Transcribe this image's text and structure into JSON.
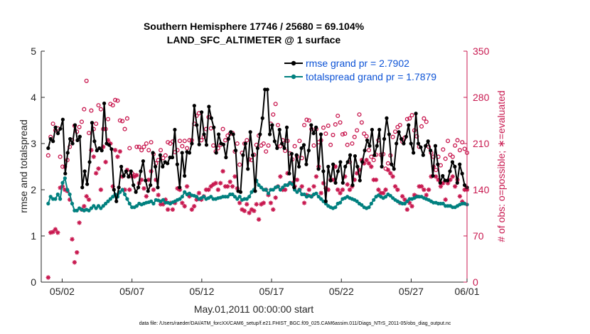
{
  "chart_data": {
    "type": "line",
    "title_line1": "Southern Hemisphere 17746 / 25680 = 69.104%",
    "title_line2": "LAND_SFC_ALTIMETER @ 1 surface",
    "xlabel": "May.01,2011 00:00:00 start",
    "ylabel_left": "rmse and totalspread",
    "ylabel_right": "# of obs: o=possible; ∗=evaluated",
    "footer": "data file: /Users/raeder/DAI/ATM_forcXX/CAM6_setup/f.e21.FHIST_BGC.f09_025.CAM6assim.011/Diags_NTrS_2011-05/obs_diag_output.nc",
    "xlim": [
      0.5,
      31.0
    ],
    "ylim_left": [
      0,
      5
    ],
    "ylim_right": [
      0,
      350
    ],
    "x_tick_values": [
      2,
      7,
      12,
      17,
      22,
      27,
      32
    ],
    "x_tick_labels": [
      "05/02",
      "05/07",
      "05/12",
      "05/17",
      "05/22",
      "05/27",
      "06/01"
    ],
    "y_left_ticks": [
      "0",
      "1",
      "2",
      "3",
      "4",
      "5"
    ],
    "y_right_ticks": [
      "0",
      "70",
      "140",
      "210",
      "280",
      "350"
    ],
    "colors": {
      "rmse": "#000000",
      "spread": "#00807f",
      "obs": "#c8184f",
      "legend_text": "#0b52d6"
    },
    "series": [
      {
        "name": "rmse grand pr = 2.7902",
        "marker": "dot",
        "values": [
          2.9,
          3.1,
          3.05,
          3.35,
          3.22,
          3.32,
          3.52,
          2.35,
          2.8,
          3.1,
          3.0,
          3.4,
          3.07,
          3.15,
          2.05,
          2.4,
          2.12,
          2.6,
          3.45,
          3.05,
          2.85,
          2.9,
          2.85,
          3.87,
          3.0,
          2.97,
          2.88,
          2.0,
          1.75,
          2.05,
          2.5,
          2.3,
          2.4,
          2.28,
          2.4,
          2.1,
          1.95,
          2.05,
          2.4,
          2.62,
          2.2,
          1.97,
          2.1,
          2.8,
          2.5,
          2.05,
          2.75,
          2.5,
          2.6,
          2.57,
          2.7,
          2.7,
          3.3,
          2.55,
          2.05,
          2.8,
          2.3,
          2.82,
          2.8,
          3.0,
          3.82,
          3.4,
          2.98,
          3.68,
          3.2,
          2.97,
          3.8,
          3.55,
          3.35,
          2.8,
          3.2,
          3.0,
          2.98,
          2.7,
          3.1,
          3.25,
          3.2,
          2.85,
          1.97,
          1.95,
          2.75,
          3.0,
          2.45,
          3.25,
          2.75,
          1.97,
          2.9,
          3.2,
          3.55,
          4.17,
          4.17,
          3.2,
          3.4,
          3.05,
          2.9,
          3.3,
          3.0,
          2.9,
          3.35,
          2.35,
          2.78,
          2.05,
          2.75,
          2.5,
          2.9,
          2.97,
          2.55,
          2.85,
          3.4,
          3.22,
          3.35,
          2.45,
          3.2,
          2.4,
          1.75,
          2.5,
          2.2,
          2.55,
          2.15,
          2.4,
          2.6,
          2.15,
          2.5,
          2.6,
          2.75,
          2.1,
          2.73,
          2.5,
          2.2,
          2.6,
          2.85,
          3.07,
          2.95,
          3.3,
          2.75,
          2.95,
          3.3,
          2.5,
          3.1,
          3.55,
          3.2,
          2.55,
          2.45,
          3.0,
          3.25,
          3.1,
          3.0,
          3.15,
          3.4,
          3.0,
          2.8,
          3.65,
          3.0,
          2.92,
          2.75,
          2.95,
          3.05,
          2.85,
          2.3,
          2.95,
          2.55,
          2.15,
          2.3,
          2.2,
          2.2,
          2.4,
          2.6,
          2.5,
          2.15,
          2.55,
          2.35,
          2.1,
          2.05
        ],
        "line": true
      },
      {
        "name": "totalspread grand pr = 1.7879",
        "marker": "dot",
        "values": [
          1.7,
          1.85,
          1.8,
          1.8,
          1.9,
          1.8,
          2.15,
          2.25,
          2.0,
          1.9,
          1.7,
          1.55,
          1.55,
          1.6,
          1.57,
          1.55,
          1.57,
          1.55,
          1.6,
          1.65,
          1.6,
          1.65,
          1.6,
          1.65,
          1.7,
          1.75,
          1.8,
          1.85,
          1.9,
          1.85,
          1.95,
          2.0,
          1.9,
          1.8,
          1.7,
          1.62,
          1.62,
          1.65,
          1.7,
          1.68,
          1.7,
          1.72,
          1.73,
          1.75,
          1.7,
          1.78,
          1.77,
          1.75,
          1.78,
          1.72,
          1.72,
          1.7,
          1.73,
          1.75,
          1.78,
          1.8,
          1.85,
          1.95,
          1.9,
          1.92,
          1.88,
          1.87,
          1.85,
          1.8,
          1.82,
          1.85,
          1.8,
          1.82,
          1.85,
          1.8,
          1.8,
          1.82,
          1.83,
          1.85,
          1.85,
          1.85,
          1.9,
          1.9,
          1.85,
          1.8,
          1.85,
          1.78,
          1.8,
          1.8,
          1.85,
          1.95,
          2.0,
          2.2,
          2.1,
          2.05,
          2.0,
          2.0,
          1.92,
          2.0,
          2.0,
          2.05,
          2.07,
          2.0,
          2.05,
          2.1,
          2.1,
          2.15,
          2.12,
          2.0,
          1.95,
          2.0,
          1.9,
          1.9,
          1.85,
          1.87,
          1.85,
          1.9,
          1.92,
          1.85,
          1.8,
          1.75,
          1.7,
          1.65,
          1.62,
          1.6,
          1.62,
          1.7,
          1.72,
          1.8,
          1.82,
          1.85,
          1.82,
          1.8,
          1.78,
          1.75,
          1.7,
          1.67,
          1.62,
          1.6,
          1.62,
          1.7,
          1.78,
          1.85,
          1.88,
          1.85,
          1.82,
          1.85,
          1.9,
          1.87,
          1.82,
          1.78,
          1.75,
          1.72,
          1.7,
          1.7,
          1.75,
          1.8,
          1.8,
          1.82,
          1.85,
          1.85,
          1.85,
          1.82,
          1.8,
          1.78,
          1.75,
          1.72,
          1.72,
          1.7,
          1.7,
          1.7,
          1.65,
          1.65,
          1.65,
          1.62,
          1.62,
          1.65,
          1.68,
          1.7,
          1.7,
          1.68
        ],
        "line": true
      },
      {
        "name": "obs possible",
        "marker": "circle",
        "values": [
          192,
          220,
          240,
          230,
          233,
          190,
          175,
          175,
          185,
          205,
          215,
          237,
          228,
          235,
          243,
          262,
          305,
          226,
          260,
          232,
          240,
          268,
          262,
          232,
          232,
          247,
          270,
          268,
          276,
          275,
          245,
          244,
          232,
          248,
          203,
          165,
          162,
          205,
          205,
          200,
          205,
          210,
          200,
          212,
          194,
          180,
          185,
          200,
          188,
          192,
          212,
          210,
          213,
          197,
          200,
          214,
          206,
          214,
          203,
          215,
          215,
          240,
          252,
          256,
          215,
          220,
          232,
          250,
          233,
          207,
          198,
          203,
          208,
          232,
          215,
          222,
          225,
          226,
          198,
          210,
          178,
          196,
          210,
          215,
          186,
          185,
          193,
          208,
          222,
          207,
          210,
          198,
          207,
          240,
          254,
          270,
          238,
          206,
          215,
          199,
          214,
          195,
          186,
          206,
          190,
          214,
          188,
          238,
          246,
          245,
          232,
          207,
          232,
          212,
          215,
          234,
          225,
          237,
          208,
          223,
          239,
          252,
          242,
          224,
          225,
          208,
          182,
          210,
          220,
          230,
          254,
          242,
          225,
          221,
          200,
          190,
          185,
          193,
          215,
          193,
          194,
          172,
          180,
          192,
          220,
          228,
          235,
          238,
          213,
          219,
          247,
          248,
          253,
          230,
          221,
          205,
          236,
          248,
          243,
          205,
          196,
          190,
          170,
          190,
          177,
          201,
          187,
          214,
          193,
          190,
          207,
          215,
          200,
          212,
          202,
          196
        ]
      },
      {
        "name": "obs evaluated",
        "marker": "star",
        "values": [
          7,
          75,
          76,
          80,
          75,
          143,
          145,
          140,
          138,
          125,
          65,
          30,
          45,
          90,
          110,
          115,
          130,
          125,
          200,
          190,
          165,
          172,
          140,
          205,
          182,
          215,
          210,
          145,
          200,
          190,
          198,
          160,
          140,
          170,
          140,
          160,
          160,
          162,
          150,
          155,
          142,
          130,
          155,
          168,
          140,
          155,
          132,
          118,
          118,
          125,
          110,
          120,
          110,
          120,
          142,
          140,
          120,
          115,
          145,
          130,
          110,
          115,
          125,
          135,
          125,
          130,
          140,
          140,
          145,
          148,
          150,
          140,
          150,
          168,
          145,
          145,
          152,
          145,
          160,
          142,
          120,
          110,
          108,
          118,
          105,
          110,
          108,
          118,
          95,
          118,
          120,
          140,
          132,
          120,
          110,
          128,
          145,
          160,
          140,
          140,
          165,
          150,
          150,
          145,
          155,
          140,
          145,
          120,
          132,
          140,
          130,
          145,
          160,
          175,
          135,
          150,
          142,
          140,
          155,
          155,
          175,
          140,
          135,
          140,
          160,
          148,
          140,
          145,
          155,
          165,
          170,
          185,
          180,
          185,
          180,
          175,
          155,
          155,
          140,
          135,
          135,
          140,
          170,
          165,
          160,
          145,
          140,
          120,
          130,
          125,
          110,
          120,
          115,
          132,
          130,
          145,
          145,
          140,
          132,
          140,
          160,
          175,
          160,
          155,
          145,
          150,
          125,
          150,
          155,
          160,
          145,
          155,
          130,
          122,
          140,
          140
        ]
      }
    ]
  }
}
